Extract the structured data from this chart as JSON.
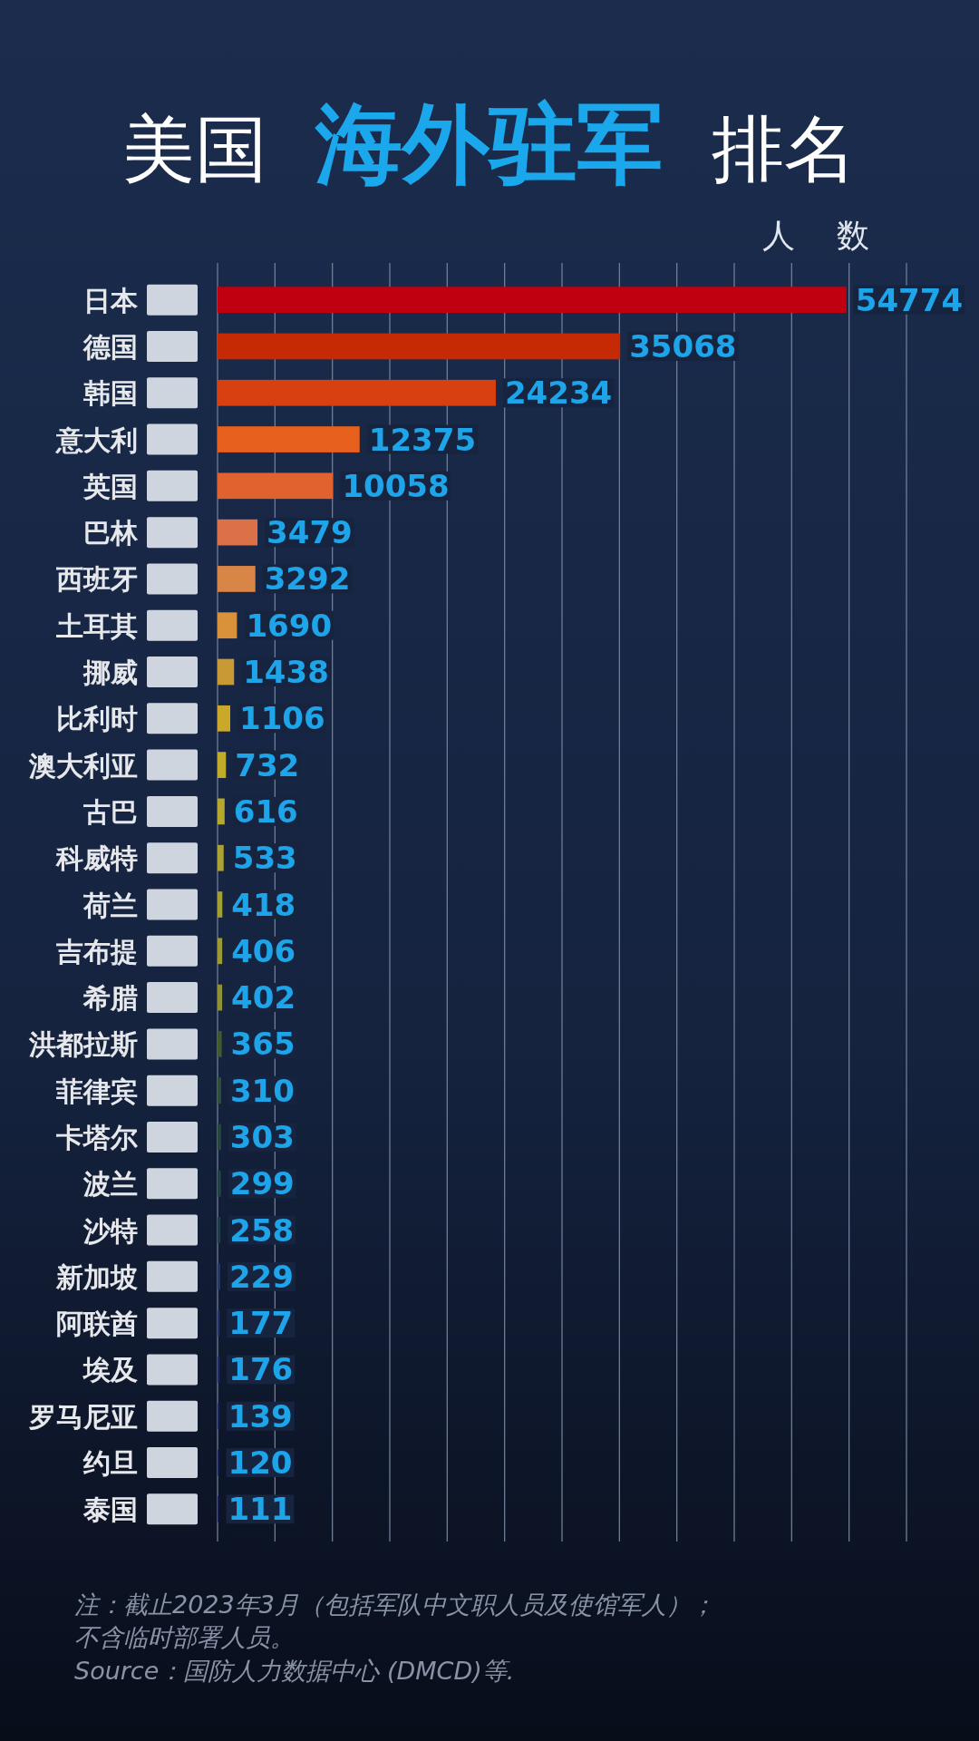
{
  "chart_data": {
    "type": "bar",
    "orientation": "horizontal",
    "title": "美国 **海外驻军** 排名",
    "xlabel": "人 数",
    "categories": [
      "日本",
      "德国",
      "韩国",
      "意大利",
      "英国",
      "巴林",
      "西班牙",
      "土耳其",
      "挪威",
      "比利时",
      "澳大利亚",
      "古巴",
      "科威特",
      "荷兰",
      "吉布提",
      "希腊",
      "洪都拉斯",
      "菲律宾",
      "卡塔尔",
      "波兰",
      "沙特",
      "新加坡",
      "阿联酋",
      "埃及",
      "罗马尼亚",
      "约旦",
      "泰国"
    ],
    "values": [
      54774,
      35068,
      24234,
      12375,
      10058,
      3479,
      3292,
      1690,
      1438,
      1106,
      732,
      616,
      533,
      418,
      406,
      402,
      365,
      310,
      303,
      299,
      258,
      229,
      177,
      176,
      139,
      120,
      111
    ],
    "colors": [
      "#c00010",
      "#c52a05",
      "#d8400f",
      "#e8601e",
      "#e0622e",
      "#dc7048",
      "#d98548",
      "#d9913a",
      "#c99a33",
      "#c9a82a",
      "#c2aa2a",
      "#b5a82c",
      "#aba232",
      "#a3a033",
      "#9c9a35",
      "#8e9232",
      "#3f5a30",
      "#2f5038",
      "#26463e",
      "#224142",
      "#1f3c48",
      "#243a62",
      "#22346a",
      "#1f2c6c",
      "#1d2868",
      "#1c2566",
      "#1b2260"
    ],
    "data_labels": true,
    "xlim": [
      0,
      60000
    ],
    "xticks": [
      {
        "value": 0,
        "label": null
      },
      {
        "value": 5000,
        "label": null
      },
      {
        "value": 10000,
        "label": null
      },
      {
        "value": 15000,
        "label": null
      },
      {
        "value": 20000,
        "label": null
      },
      {
        "value": 25000,
        "label": null
      },
      {
        "value": 30000,
        "label": null
      },
      {
        "value": 35000,
        "label": null
      },
      {
        "value": 40000,
        "label": null
      },
      {
        "value": 45000,
        "label": null
      },
      {
        "value": 50000,
        "label": null
      },
      {
        "value": 55000,
        "label": null
      },
      {
        "value": 60000,
        "label": null
      }
    ],
    "grid": "x",
    "tick_labels": "y",
    "annotations": [
      "注：截止2023年3月（包括军队中文职人员及使馆军人）；不含临时部署人员。",
      "Source：国防人力数据中心 (DMCD)等."
    ]
  }
}
